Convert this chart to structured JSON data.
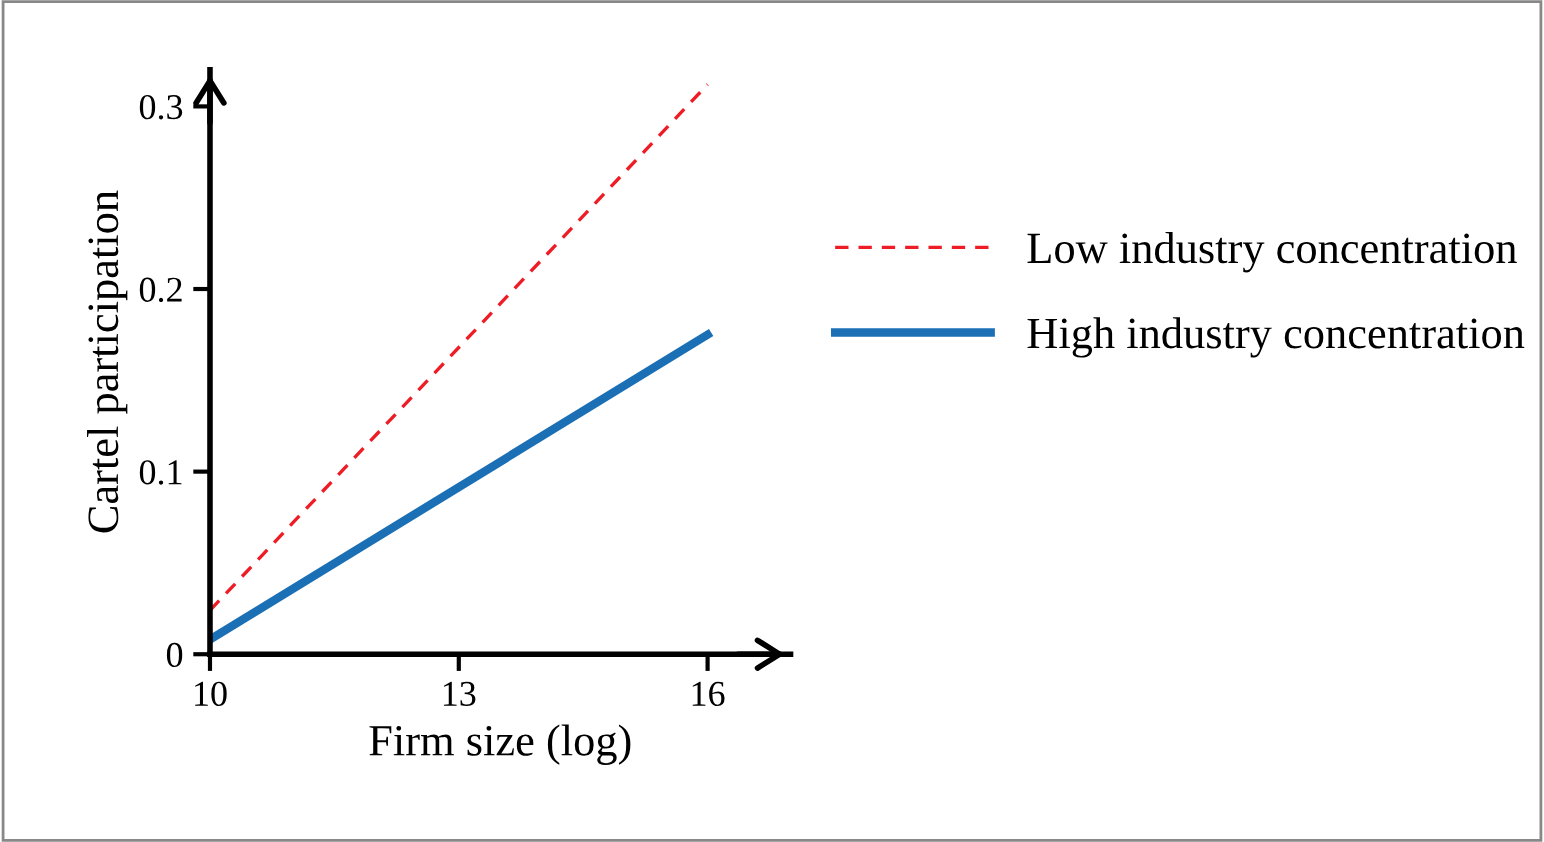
{
  "chart_data": {
    "type": "line",
    "xlabel": "Firm size (log)",
    "ylabel": "Cartel participation",
    "xlim": [
      10,
      17
    ],
    "xticks": [
      10,
      13,
      16
    ],
    "ylim": [
      0,
      0.32
    ],
    "yticks": [
      0,
      0.1,
      0.2,
      0.3
    ],
    "x": [
      10,
      16
    ],
    "series": [
      {
        "name": "Low industry concentration",
        "color": "#ee1c25",
        "line_style": "dashed",
        "values": [
          0.024,
          0.312
        ]
      },
      {
        "name": "High industry concentration",
        "color": "#1a6fb5",
        "line_style": "solid",
        "values": [
          0.008,
          0.175
        ]
      }
    ],
    "legend": "right",
    "grid": false,
    "marker": "none"
  }
}
